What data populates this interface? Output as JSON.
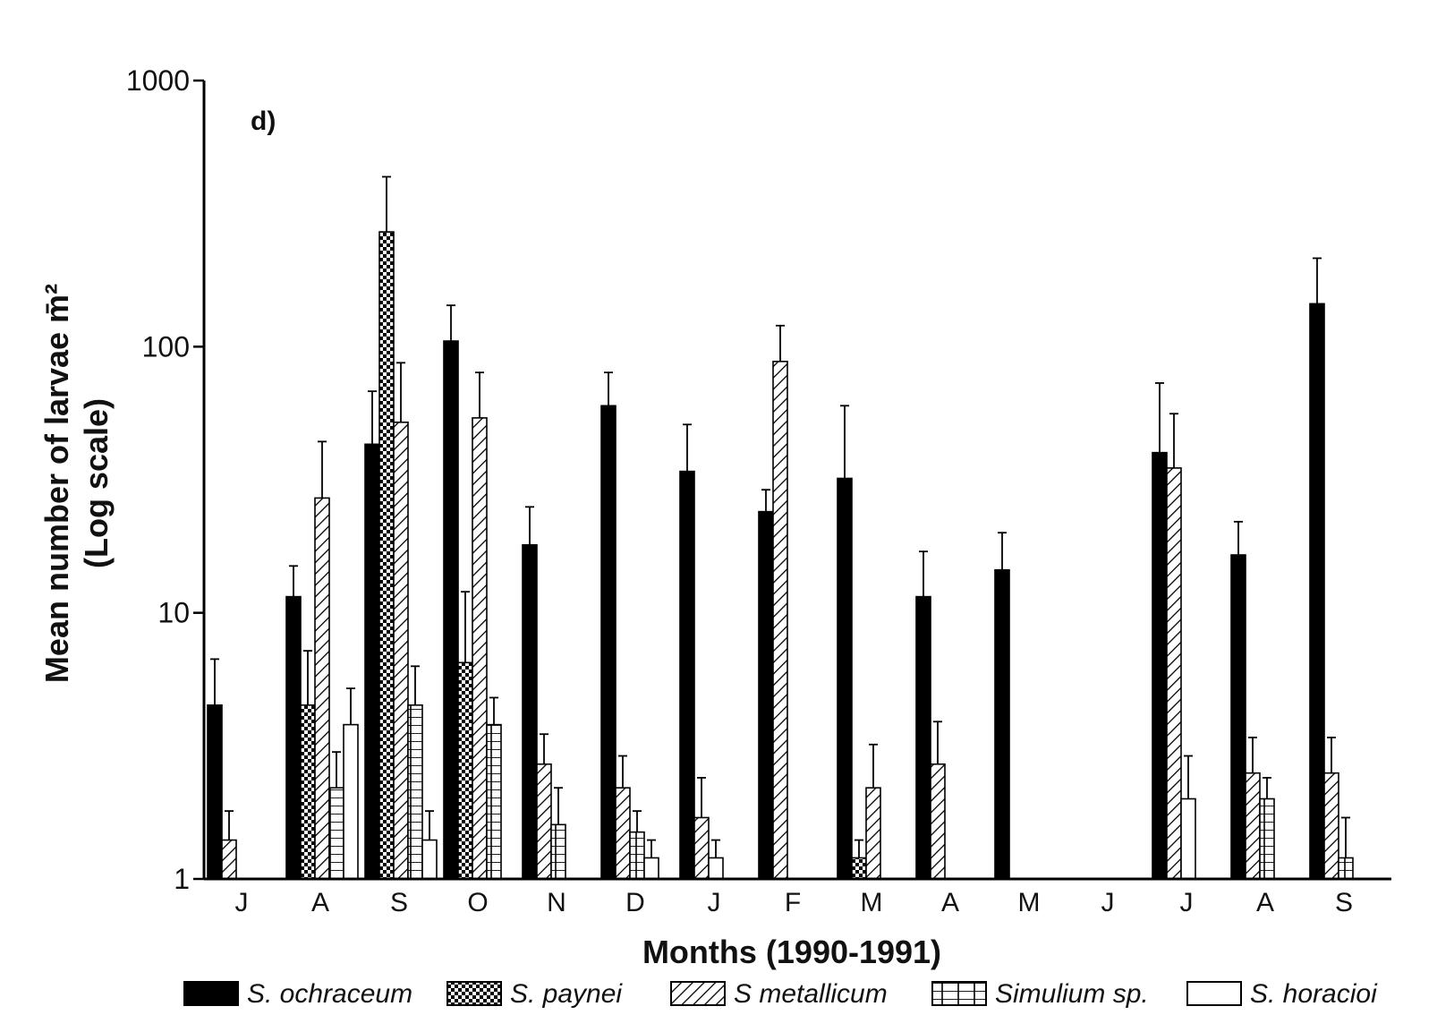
{
  "chart_data": {
    "type": "bar",
    "panel_label": "d)",
    "xlabel": "Months (1990-1991)",
    "ylabel": "Mean number of larvae m̄²",
    "ylabel_sub": "(Log scale)",
    "yscale": "log",
    "ylim": [
      1,
      1000
    ],
    "yticks": [
      "1",
      "10",
      "100",
      "1000"
    ],
    "categories": [
      "J",
      "A",
      "S",
      "O",
      "N",
      "D",
      "J",
      "F",
      "M",
      "A",
      "M",
      "J",
      "J",
      "A",
      "S"
    ],
    "legend_position": "bottom",
    "series": [
      {
        "name": "S. ochraceum",
        "pattern": "solid",
        "values": [
          4.5,
          11.5,
          43,
          105,
          18,
          60,
          34,
          24,
          32,
          11.5,
          14.5,
          null,
          40,
          16.5,
          145
        ],
        "errors": [
          2.2,
          3.5,
          25,
          38,
          7,
          20,
          17,
          5,
          28,
          5.5,
          5.5,
          null,
          33,
          5.5,
          70
        ]
      },
      {
        "name": "S. paynei",
        "pattern": "checker",
        "values": [
          null,
          4.5,
          270,
          6.5,
          null,
          null,
          null,
          null,
          1.2,
          null,
          null,
          null,
          null,
          null,
          null
        ],
        "errors": [
          null,
          2.7,
          165,
          5.5,
          null,
          null,
          null,
          null,
          0.2,
          null,
          null,
          null,
          null,
          null,
          null
        ]
      },
      {
        "name": "S metallicum",
        "pattern": "diagonal",
        "values": [
          1.4,
          27,
          52,
          54,
          2.7,
          2.2,
          1.7,
          88,
          2.2,
          2.7,
          null,
          null,
          35,
          2.5,
          2.5
        ],
        "errors": [
          0.4,
          17,
          35,
          26,
          0.8,
          0.7,
          0.7,
          32,
          1,
          1.2,
          null,
          null,
          21,
          0.9,
          0.9
        ]
      },
      {
        "name": "Simulium sp.",
        "pattern": "grid",
        "values": [
          null,
          2.2,
          4.5,
          3.8,
          1.6,
          1.5,
          null,
          null,
          null,
          null,
          null,
          null,
          null,
          2,
          1.2
        ],
        "errors": [
          null,
          0.8,
          1.8,
          1,
          0.6,
          0.3,
          null,
          null,
          null,
          null,
          null,
          null,
          null,
          0.4,
          0.5
        ]
      },
      {
        "name": "S. horacioi",
        "pattern": "open",
        "values": [
          null,
          3.8,
          1.4,
          null,
          null,
          1.2,
          1.2,
          null,
          null,
          null,
          null,
          null,
          2,
          null,
          null
        ],
        "errors": [
          null,
          1.4,
          0.4,
          null,
          null,
          0.2,
          0.2,
          null,
          null,
          null,
          null,
          null,
          0.9,
          null,
          null
        ]
      }
    ]
  }
}
